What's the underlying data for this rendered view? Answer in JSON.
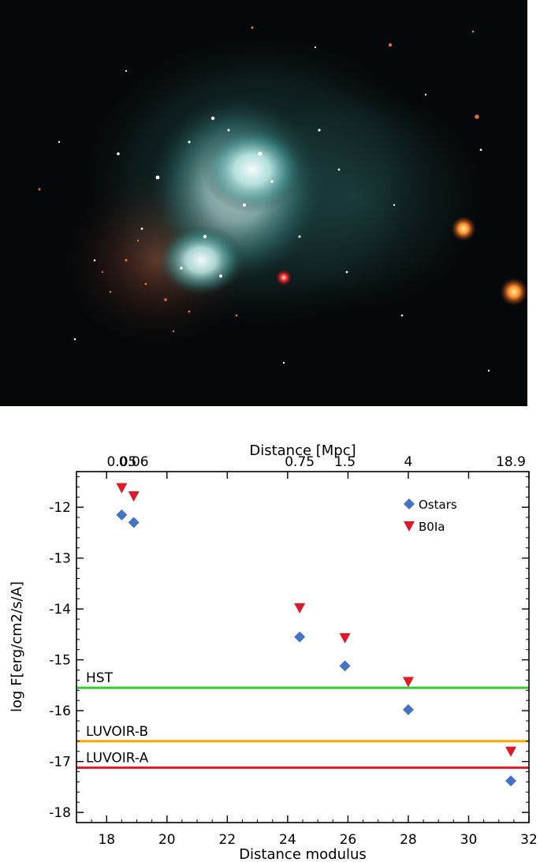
{
  "image": {
    "subject": "galaxy-photo",
    "colors": {
      "background": "#05080a",
      "gas": "#3f8f8c",
      "core": "#dff4f2",
      "stars_red": "#e0603a"
    }
  },
  "chart_data": {
    "type": "scatter",
    "title": "",
    "xlabel": "Distance modulus",
    "ylabel": "log F[erg/cm2/s/A]",
    "x2label": "Distance [Mpc]",
    "xlim": [
      17,
      32
    ],
    "ylim": [
      -18.2,
      -11.3
    ],
    "xticks": [
      "18",
      "20",
      "22",
      "24",
      "26",
      "28",
      "30",
      "32"
    ],
    "yticks": [
      "-12",
      "-13",
      "-14",
      "-15",
      "-16",
      "-17",
      "-18"
    ],
    "x2ticks": [
      {
        "label": "0.05",
        "x": 18.5
      },
      {
        "label": "0.06",
        "x": 18.9
      },
      {
        "label": "0.75",
        "x": 24.4
      },
      {
        "label": "1.5",
        "x": 25.9
      },
      {
        "label": "4",
        "x": 28.0
      },
      {
        "label": "18.9",
        "x": 31.4
      }
    ],
    "series": [
      {
        "name": "Ostars",
        "marker": "diamond",
        "color": "#4472c4",
        "points": [
          [
            18.5,
            -12.15
          ],
          [
            18.9,
            -12.3
          ],
          [
            24.4,
            -14.55
          ],
          [
            25.9,
            -15.12
          ],
          [
            28.0,
            -15.98
          ],
          [
            31.4,
            -17.38
          ]
        ]
      },
      {
        "name": "B0Ia",
        "marker": "triangle-down",
        "color": "#e0192a",
        "points": [
          [
            18.5,
            -11.62
          ],
          [
            18.9,
            -11.78
          ],
          [
            24.4,
            -13.98
          ],
          [
            25.9,
            -14.57
          ],
          [
            28.0,
            -15.43
          ],
          [
            31.4,
            -16.8
          ]
        ]
      }
    ],
    "hlines": [
      {
        "label": "HST",
        "y": -15.55,
        "color": "#33cc33"
      },
      {
        "label": "LUVOIR-B",
        "y": -16.6,
        "color": "#ffa500"
      },
      {
        "label": "LUVOIR-A",
        "y": -17.12,
        "color": "#e0192a"
      }
    ],
    "legend_position": "top-right",
    "grid": false
  }
}
